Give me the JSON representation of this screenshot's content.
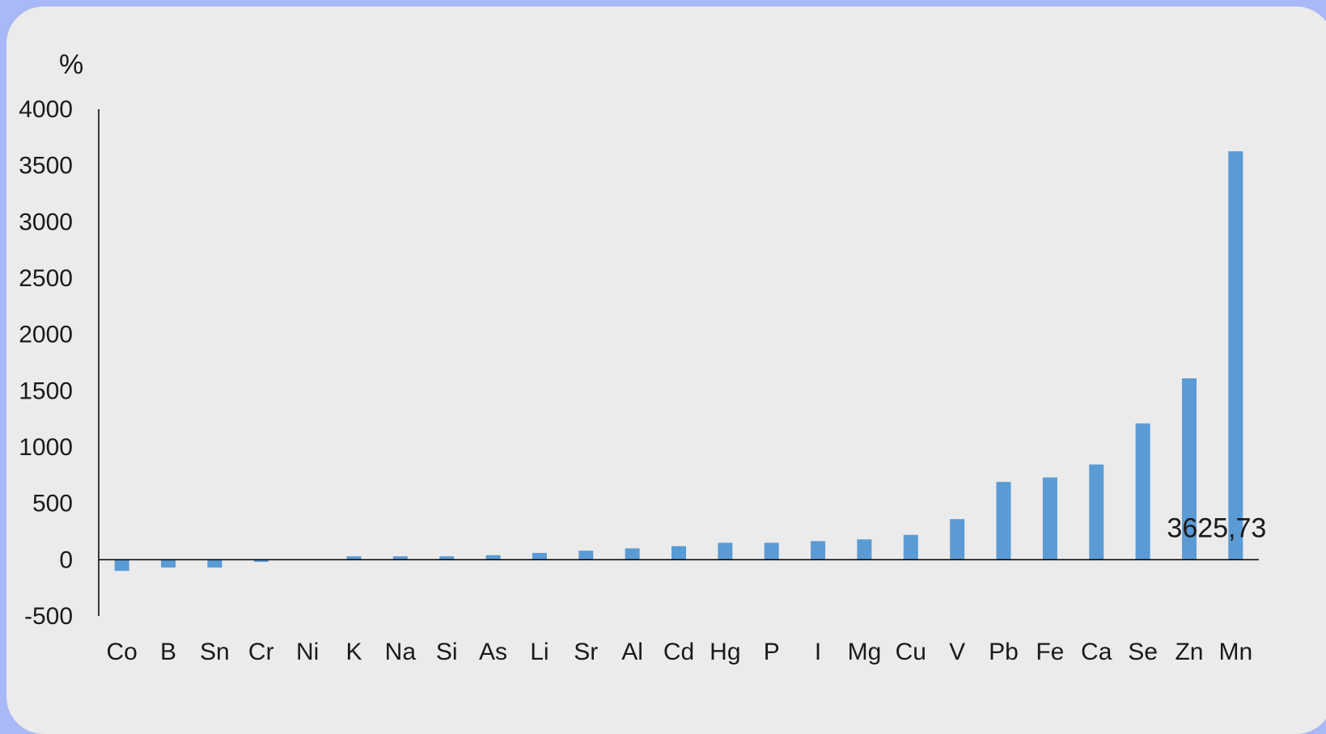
{
  "chart_data": {
    "type": "bar",
    "y_unit": "%",
    "categories": [
      "Co",
      "B",
      "Sn",
      "Cr",
      "Ni",
      "K",
      "Na",
      "Si",
      "As",
      "Li",
      "Sr",
      "Al",
      "Cd",
      "Hg",
      "P",
      "I",
      "Mg",
      "Cu",
      "V",
      "Pb",
      "Fe",
      "Ca",
      "Se",
      "Zn",
      "Mn"
    ],
    "values": [
      -100,
      -70,
      -70,
      -20,
      0,
      30,
      30,
      30,
      40,
      60,
      80,
      100,
      120,
      150,
      150,
      165,
      180,
      220,
      360,
      690,
      730,
      845,
      1210,
      1610,
      3625.73
    ],
    "ylim": [
      -500,
      4000
    ],
    "y_ticks": [
      "4000",
      "3500",
      "3000",
      "2500",
      "2000",
      "1500",
      "1000",
      "500",
      "0",
      "-500"
    ],
    "data_label": "3625,73",
    "bar_color": "#5b9bd5",
    "grid": false,
    "legend": "none"
  }
}
